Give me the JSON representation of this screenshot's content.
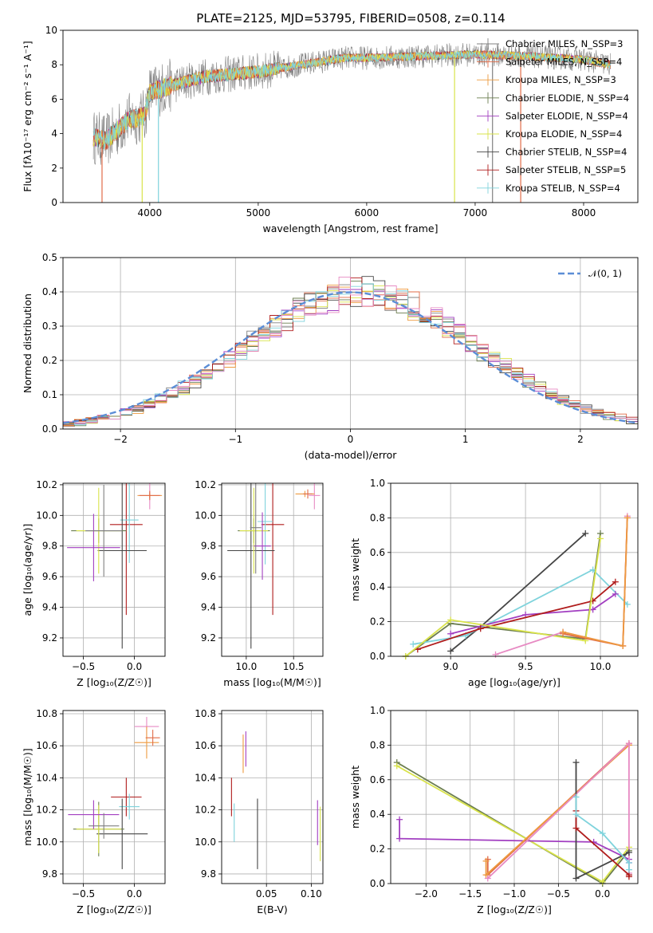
{
  "figure": {
    "title": "PLATE=2125, MJD=53795, FIBERID=0508, z=0.114"
  },
  "chart_data": [
    {
      "id": "spectrum",
      "type": "line",
      "xlabel": "wavelength [Angstrom, rest frame]",
      "ylabel": "Flux [fλ10⁻¹⁷ erg cm⁻² s⁻¹ A⁻¹]",
      "xlim": [
        3200,
        8500
      ],
      "ylim": [
        0,
        10
      ],
      "xticks": [
        4000,
        5000,
        6000,
        7000,
        8000
      ],
      "yticks": [
        0,
        2,
        4,
        6,
        8,
        10
      ],
      "legend": "upper right",
      "grid": false,
      "continuum": {
        "x": [
          3480,
          3600,
          3800,
          3950,
          4000,
          4200,
          4500,
          5000,
          5500,
          5800,
          6000,
          6500,
          7000,
          7500,
          8000,
          8250
        ],
        "y": [
          3.8,
          3.6,
          4.8,
          5.0,
          6.4,
          6.8,
          7.3,
          7.6,
          8.1,
          8.4,
          8.4,
          8.5,
          8.6,
          8.5,
          8.3,
          8.0
        ]
      },
      "series": [
        {
          "name": "Chabrier MILES, N_SSP=3",
          "color": "#808080"
        },
        {
          "name": "Salpeter MILES, N_SSP=4",
          "color": "#e06b47"
        },
        {
          "name": "Kroupa MILES, N_SSP=3",
          "color": "#ed9a3f"
        },
        {
          "name": "Chabrier ELODIE, N_SSP=4",
          "color": "#6b7d4f"
        },
        {
          "name": "Salpeter ELODIE, N_SSP=4",
          "color": "#a23fc1"
        },
        {
          "name": "Kroupa ELODIE, N_SSP=4",
          "color": "#d9e34a"
        },
        {
          "name": "Chabrier STELIB, N_SSP=4",
          "color": "#454545"
        },
        {
          "name": "Salpeter STELIB, N_SSP=5",
          "color": "#b01c1c"
        },
        {
          "name": "Kroupa STELIB, N_SSP=4",
          "color": "#7fd3dc"
        }
      ]
    },
    {
      "id": "residuals",
      "type": "line",
      "xlabel": "(data-model)/error",
      "ylabel": "Normed distribution",
      "xlim": [
        -2.5,
        2.5
      ],
      "ylim": [
        0,
        0.5
      ],
      "xticks": [
        -2,
        -1,
        0,
        1,
        2
      ],
      "yticks": [
        0.0,
        0.1,
        0.2,
        0.3,
        0.4,
        0.5
      ],
      "grid": true,
      "legend": "upper right",
      "normal_label": "𝒩(0, 1)",
      "normal_color": "#5b8dd6",
      "bin_width": 0.1,
      "hist_colors": [
        "#808080",
        "#e06b47",
        "#ed9a3f",
        "#6b7d4f",
        "#a23fc1",
        "#d9e34a",
        "#454545",
        "#b01c1c",
        "#7fd3dc",
        "#e78ac3"
      ]
    },
    {
      "id": "age_vs_Z",
      "type": "scatter",
      "xlabel": "Z [log₁₀(Z/Z☉)]",
      "ylabel": "age  [log₁₀(age/yr)]",
      "xlim": [
        -0.7,
        0.3
      ],
      "ylim": [
        9.08,
        10.21
      ],
      "xticks": [
        -0.5,
        0.0
      ],
      "yticks": [
        9.2,
        9.4,
        9.6,
        9.8,
        10.0,
        10.2
      ],
      "grid": true,
      "points": [
        {
          "x": 0.15,
          "y": 10.13,
          "xerr": 0.11,
          "yerr": 0.09,
          "color": "#e78ac3"
        },
        {
          "x": 0.15,
          "y": 10.13,
          "xerr": 0.12,
          "yerr": 0.02,
          "color": "#ed9a3f"
        },
        {
          "x": 0.15,
          "y": 10.13,
          "xerr": 0.1,
          "yerr": 0.03,
          "color": "#e06b47"
        },
        {
          "x": -0.08,
          "y": 9.94,
          "xerr": 0.16,
          "yerr": 0.59,
          "color": "#b01c1c"
        },
        {
          "x": -0.05,
          "y": 9.97,
          "xerr": 0.09,
          "yerr": 0.28,
          "color": "#7fd3dc"
        },
        {
          "x": -0.12,
          "y": 9.77,
          "xerr": 0.24,
          "yerr": 0.64,
          "color": "#454545"
        },
        {
          "x": -0.35,
          "y": 9.9,
          "xerr": 0.27,
          "yerr": 0.08,
          "color": "#6b7d4f"
        },
        {
          "x": -0.35,
          "y": 9.9,
          "xerr": 0.22,
          "yerr": 0.28,
          "color": "#d9e34a"
        },
        {
          "x": -0.4,
          "y": 9.79,
          "xerr": 0.26,
          "yerr": 0.22,
          "color": "#a23fc1"
        },
        {
          "x": -0.3,
          "y": 9.9,
          "xerr": 0.18,
          "yerr": 0.3,
          "color": "#808080"
        }
      ]
    },
    {
      "id": "age_vs_mass",
      "type": "scatter",
      "xlabel": "mass [log₁₀(M/M☉)]",
      "ylabel": "",
      "xlim": [
        9.74,
        10.81
      ],
      "ylim": [
        9.08,
        10.21
      ],
      "xticks": [
        10.0,
        10.5
      ],
      "yticks": [
        9.2,
        9.4,
        9.6,
        9.8,
        10.0,
        10.2
      ],
      "grid": true,
      "points": [
        {
          "x": 10.72,
          "y": 10.13,
          "xerr": 0.06,
          "yerr": 0.09,
          "color": "#e78ac3"
        },
        {
          "x": 10.62,
          "y": 10.14,
          "xerr": 0.1,
          "yerr": 0.02,
          "color": "#ed9a3f"
        },
        {
          "x": 10.65,
          "y": 10.14,
          "xerr": 0.05,
          "yerr": 0.03,
          "color": "#e06b47"
        },
        {
          "x": 10.28,
          "y": 9.94,
          "xerr": 0.12,
          "yerr": 0.59,
          "color": "#b01c1c"
        },
        {
          "x": 10.2,
          "y": 9.96,
          "xerr": 0.08,
          "yerr": 0.28,
          "color": "#7fd3dc"
        },
        {
          "x": 10.05,
          "y": 9.77,
          "xerr": 0.25,
          "yerr": 0.64,
          "color": "#454545"
        },
        {
          "x": 10.08,
          "y": 9.9,
          "xerr": 0.17,
          "yerr": 0.08,
          "color": "#6b7d4f"
        },
        {
          "x": 10.08,
          "y": 9.9,
          "xerr": 0.15,
          "yerr": 0.28,
          "color": "#d9e34a"
        },
        {
          "x": 10.17,
          "y": 9.8,
          "xerr": 0.09,
          "yerr": 0.22,
          "color": "#a23fc1"
        },
        {
          "x": 10.1,
          "y": 9.92,
          "xerr": 0.06,
          "yerr": 0.3,
          "color": "#808080"
        }
      ]
    },
    {
      "id": "weight_vs_age",
      "type": "line",
      "xlabel": "age  [log₁₀(age/yr)]",
      "ylabel": "mass weight",
      "xlim": [
        8.6,
        10.25
      ],
      "ylim": [
        0,
        1.0
      ],
      "xticks": [
        9.0,
        9.5,
        10.0
      ],
      "yticks": [
        0.0,
        0.2,
        0.4,
        0.6,
        0.8,
        1.0
      ],
      "grid": true,
      "series": [
        {
          "color": "#454545",
          "x": [
            9.0,
            9.2,
            9.9
          ],
          "y": [
            0.03,
            0.17,
            0.71
          ]
        },
        {
          "color": "#6b7d4f",
          "x": [
            8.7,
            9.0,
            9.9,
            10.0
          ],
          "y": [
            0.0,
            0.19,
            0.1,
            0.71
          ]
        },
        {
          "color": "#7fd3dc",
          "x": [
            8.75,
            9.1,
            9.95,
            10.18
          ],
          "y": [
            0.07,
            0.12,
            0.5,
            0.3
          ]
        },
        {
          "color": "#a23fc1",
          "x": [
            9.0,
            9.5,
            9.95,
            10.1
          ],
          "y": [
            0.13,
            0.24,
            0.27,
            0.36
          ]
        },
        {
          "color": "#b01c1c",
          "x": [
            8.78,
            9.2,
            9.95,
            10.1
          ],
          "y": [
            0.04,
            0.16,
            0.32,
            0.43
          ]
        },
        {
          "color": "#d9e34a",
          "x": [
            8.7,
            9.0,
            9.9,
            10.0
          ],
          "y": [
            0.0,
            0.21,
            0.09,
            0.68
          ]
        },
        {
          "color": "#e78ac3",
          "x": [
            9.3,
            9.75,
            10.15,
            10.18
          ],
          "y": [
            0.01,
            0.14,
            0.06,
            0.81
          ]
        },
        {
          "color": "#e06b47",
          "x": [
            9.75,
            10.15,
            10.18
          ],
          "y": [
            0.13,
            0.06,
            0.8
          ]
        },
        {
          "color": "#ed9a3f",
          "x": [
            9.75,
            10.15,
            10.18
          ],
          "y": [
            0.14,
            0.06,
            0.8
          ]
        }
      ]
    },
    {
      "id": "mass_vs_Z",
      "type": "scatter",
      "xlabel": "Z [log₁₀(Z/Z☉)]",
      "ylabel": "mass [log₁₀(M/M☉)]",
      "xlim": [
        -0.7,
        0.3
      ],
      "ylim": [
        9.74,
        10.82
      ],
      "xticks": [
        -0.5,
        0.0
      ],
      "yticks": [
        9.8,
        10.0,
        10.2,
        10.4,
        10.6,
        10.8
      ],
      "grid": true,
      "points": [
        {
          "x": 0.12,
          "y": 10.72,
          "xerr": 0.12,
          "yerr": 0.06,
          "color": "#e78ac3"
        },
        {
          "x": 0.12,
          "y": 10.62,
          "xerr": 0.12,
          "yerr": 0.1,
          "color": "#ed9a3f"
        },
        {
          "x": 0.18,
          "y": 10.65,
          "xerr": 0.07,
          "yerr": 0.05,
          "color": "#e06b47"
        },
        {
          "x": -0.08,
          "y": 10.28,
          "xerr": 0.15,
          "yerr": 0.12,
          "color": "#b01c1c"
        },
        {
          "x": -0.05,
          "y": 10.22,
          "xerr": 0.1,
          "yerr": 0.08,
          "color": "#7fd3dc"
        },
        {
          "x": -0.12,
          "y": 10.05,
          "xerr": 0.25,
          "yerr": 0.22,
          "color": "#454545"
        },
        {
          "x": -0.35,
          "y": 10.08,
          "xerr": 0.25,
          "yerr": 0.17,
          "color": "#6b7d4f"
        },
        {
          "x": -0.35,
          "y": 10.08,
          "xerr": 0.22,
          "yerr": 0.15,
          "color": "#d9e34a"
        },
        {
          "x": -0.4,
          "y": 10.17,
          "xerr": 0.25,
          "yerr": 0.09,
          "color": "#a23fc1"
        },
        {
          "x": -0.3,
          "y": 10.1,
          "xerr": 0.15,
          "yerr": 0.08,
          "color": "#808080"
        }
      ]
    },
    {
      "id": "mass_vs_ebv",
      "type": "scatter",
      "xlabel": "E(B-V)",
      "ylabel": "",
      "xlim": [
        0.0,
        0.113
      ],
      "ylim": [
        9.74,
        10.82
      ],
      "xticks": [
        0.05,
        0.1
      ],
      "xticklabels": [
        "0.05",
        "0.10"
      ],
      "yticks": [
        9.8,
        10.0,
        10.2,
        10.4,
        10.6,
        10.8
      ],
      "grid": true,
      "points": [
        {
          "x": 0.011,
          "y": 10.28,
          "yerr": 0.12,
          "color": "#b01c1c"
        },
        {
          "x": 0.014,
          "y": 10.12,
          "yerr": 0.12,
          "color": "#7fd3dc"
        },
        {
          "x": 0.024,
          "y": 10.55,
          "yerr": 0.12,
          "color": "#ed9a3f"
        },
        {
          "x": 0.027,
          "y": 10.58,
          "yerr": 0.11,
          "color": "#a23fc1"
        },
        {
          "x": 0.04,
          "y": 10.05,
          "yerr": 0.22,
          "color": "#454545"
        },
        {
          "x": 0.107,
          "y": 10.12,
          "yerr": 0.14,
          "color": "#a23fc1"
        },
        {
          "x": 0.11,
          "y": 10.05,
          "yerr": 0.17,
          "color": "#d9e34a"
        }
      ]
    },
    {
      "id": "weight_vs_Z",
      "type": "line",
      "xlabel": "Z [log₁₀(Z/Z☉)]",
      "ylabel": "mass weight",
      "xlim": [
        -2.4,
        0.4
      ],
      "ylim": [
        0,
        1.0
      ],
      "xticks": [
        -2.0,
        -1.5,
        -1.0,
        -0.5,
        0.0
      ],
      "yticks": [
        0.0,
        0.2,
        0.4,
        0.6,
        0.8,
        1.0
      ],
      "grid": true,
      "series": [
        {
          "color": "#6b7d4f",
          "x": [
            -2.33,
            0.0,
            0.3
          ],
          "y": [
            0.7,
            0.0,
            0.19
          ]
        },
        {
          "color": "#d9e34a",
          "x": [
            -2.33,
            0.0,
            0.3
          ],
          "y": [
            0.68,
            0.01,
            0.21
          ]
        },
        {
          "color": "#a23fc1",
          "x": [
            -2.3,
            -2.3,
            -0.1,
            0.3,
            0.3
          ],
          "y": [
            0.37,
            0.26,
            0.24,
            0.14,
            0.12
          ]
        },
        {
          "color": "#e06b47",
          "x": [
            -1.3,
            -1.3,
            0.3,
            0.3
          ],
          "y": [
            0.14,
            0.05,
            0.81,
            0.8
          ]
        },
        {
          "color": "#ed9a3f",
          "x": [
            -1.32,
            -1.32,
            0.3
          ],
          "y": [
            0.13,
            0.05,
            0.8
          ]
        },
        {
          "color": "#e78ac3",
          "x": [
            -1.3,
            0.3,
            0.3
          ],
          "y": [
            0.03,
            0.81,
            0.06
          ]
        },
        {
          "color": "#454545",
          "x": [
            -0.3,
            -0.3,
            0.3
          ],
          "y": [
            0.7,
            0.03,
            0.18
          ]
        },
        {
          "color": "#b01c1c",
          "x": [
            -0.3,
            -0.3,
            0.3,
            0.3
          ],
          "y": [
            0.42,
            0.32,
            0.05,
            0.04
          ]
        },
        {
          "color": "#7fd3dc",
          "x": [
            -0.3,
            -0.3,
            0.0,
            0.3,
            0.3
          ],
          "y": [
            0.5,
            0.4,
            0.29,
            0.12,
            0.08
          ]
        }
      ]
    }
  ]
}
